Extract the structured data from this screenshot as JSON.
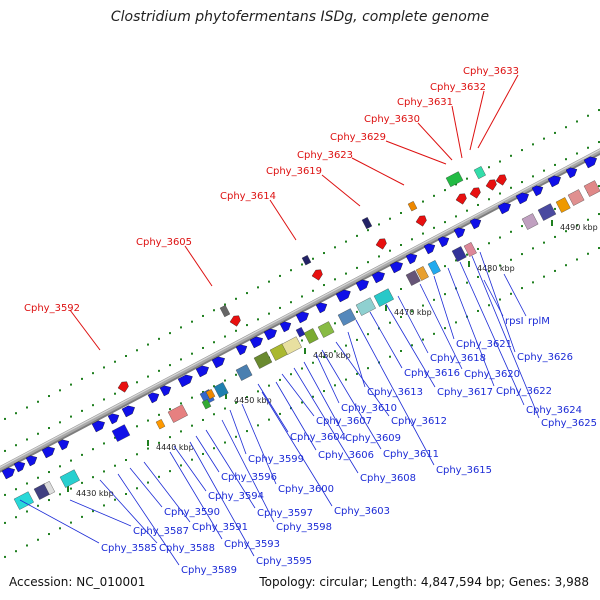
{
  "title": "Clostridium phytofermentans ISDg, complete genome",
  "footer": {
    "accession": "Accession: NC_010001",
    "summary": "Topology: circular; Length: 4,847,594 bp; Genes: 3,988"
  },
  "colors": {
    "backbone": "#a9a9a9",
    "forward_gene": "#1010e8",
    "highlight_gene": "#e81010",
    "label_blue": "#1c2bd6",
    "label_red": "#dd1111",
    "tick": "#1f7f1f"
  },
  "scale": {
    "ticks": [
      "4430 kbp",
      "4440 kbp",
      "4450 kbp",
      "4460 kbp",
      "4470 kbp",
      "4480 kbp",
      "4490 kbp"
    ]
  },
  "red_labels": [
    "Cphy_3592",
    "Cphy_3605",
    "Cphy_3614",
    "Cphy_3619",
    "Cphy_3623",
    "Cphy_3629",
    "Cphy_3630",
    "Cphy_3631",
    "Cphy_3632",
    "Cphy_3633"
  ],
  "blue_labels": [
    "Cphy_3585",
    "Cphy_3587",
    "Cphy_3588",
    "Cphy_3589",
    "Cphy_3590",
    "Cphy_3591",
    "Cphy_3593",
    "Cphy_3594",
    "Cphy_3595",
    "Cphy_3596",
    "Cphy_3597",
    "Cphy_3598",
    "Cphy_3599",
    "Cphy_3600",
    "Cphy_3603",
    "Cphy_3604",
    "Cphy_3606",
    "Cphy_3607",
    "Cphy_3608",
    "Cphy_3609",
    "Cphy_3610",
    "Cphy_3611",
    "Cphy_3612",
    "Cphy_3613",
    "Cphy_3615",
    "Cphy_3616",
    "Cphy_3617",
    "Cphy_3618",
    "Cphy_3620",
    "Cphy_3621",
    "Cphy_3622",
    "Cphy_3624",
    "Cphy_3625",
    "Cphy_3626",
    "rpsI",
    "rplM"
  ]
}
